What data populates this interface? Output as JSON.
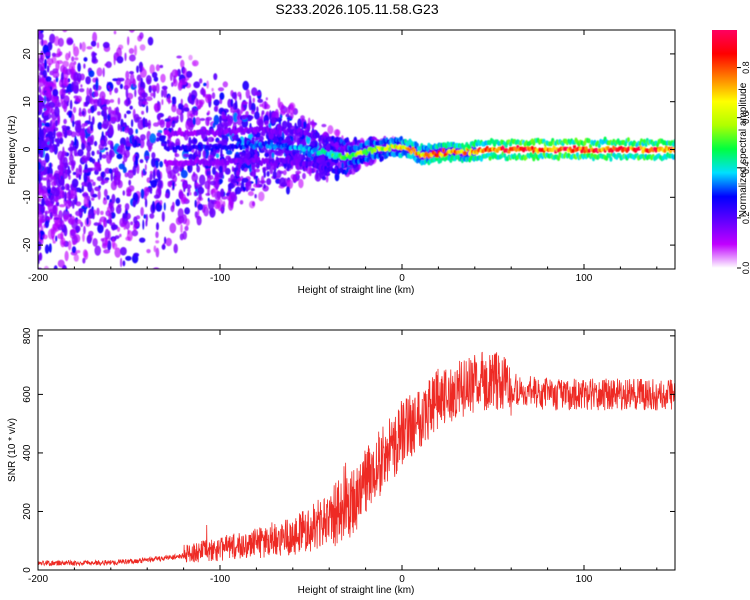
{
  "title": "S233.2026.105.11.58.G23",
  "chart_data": [
    {
      "type": "heatmap",
      "title": "",
      "xlabel": "Height of straight line (km)",
      "ylabel": "Frequency (Hz)",
      "xlim": [
        -200,
        150
      ],
      "ylim": [
        -25,
        25
      ],
      "xticks": [
        -200,
        -100,
        0,
        100
      ],
      "yticks": [
        -20,
        -10,
        0,
        10,
        20
      ],
      "colorbar": {
        "label": "Normalized spectral amplitude",
        "range": [
          0,
          0.95
        ],
        "ticks": [
          0.0,
          0.2,
          0.4,
          0.6,
          0.8
        ],
        "colors": [
          "#ffffff",
          "#c000ff",
          "#6000ff",
          "#0000ff",
          "#00e0ff",
          "#00ff40",
          "#b0ff00",
          "#ffff00",
          "#ff8000",
          "#ff0000",
          "#ff0060"
        ]
      },
      "ridge": {
        "x": [
          -200,
          -150,
          -100,
          -80,
          -60,
          -50,
          -40,
          -33,
          -25,
          -15,
          -5,
          0,
          5,
          10,
          15,
          22,
          30,
          38,
          45,
          60,
          80,
          100,
          120,
          150
        ],
        "frequency": [
          0,
          0,
          0.5,
          1,
          0.5,
          0,
          -1,
          -1.5,
          -1,
          0,
          0.5,
          0.5,
          0,
          -1,
          -1,
          -0.5,
          -0.5,
          -0.5,
          0,
          0,
          0,
          0,
          0,
          0
        ],
        "amplitude": [
          0.05,
          0.2,
          0.3,
          0.32,
          0.35,
          0.38,
          0.45,
          0.55,
          0.58,
          0.6,
          0.65,
          0.7,
          0.75,
          0.75,
          0.78,
          0.8,
          0.8,
          0.82,
          0.85,
          0.9,
          0.9,
          0.9,
          0.88,
          0.85
        ]
      }
    },
    {
      "type": "line",
      "title": "",
      "xlabel": "Height of straight line (km)",
      "ylabel": "SNR (10 * v/v)",
      "xlim": [
        -200,
        150
      ],
      "ylim": [
        0,
        820
      ],
      "xticks": [
        -200,
        -100,
        0,
        100
      ],
      "yticks": [
        0,
        200,
        400,
        600,
        800
      ],
      "series": [
        {
          "name": "SNR",
          "color": "#ee2a24",
          "x": [
            -200,
            -180,
            -160,
            -140,
            -120,
            -100,
            -80,
            -60,
            -50,
            -40,
            -30,
            -25,
            -20,
            -15,
            -10,
            -5,
            0,
            10,
            20,
            30,
            40,
            50,
            60,
            80,
            100,
            120,
            150
          ],
          "values": [
            20,
            20,
            22,
            30,
            45,
            60,
            75,
            100,
            120,
            140,
            200,
            250,
            300,
            350,
            380,
            420,
            470,
            530,
            580,
            610,
            640,
            650,
            620,
            600,
            600,
            600,
            600
          ]
        }
      ]
    }
  ]
}
